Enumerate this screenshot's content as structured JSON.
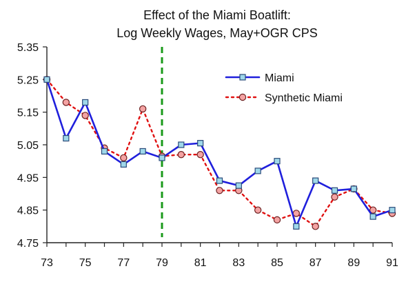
{
  "chart_data": {
    "type": "line",
    "title": "Effect of the Miami Boatlift:",
    "subtitle": "Log Weekly Wages, May+OGR CPS",
    "xlabel": "",
    "ylabel": "",
    "x": [
      73,
      74,
      75,
      76,
      77,
      78,
      79,
      80,
      81,
      82,
      83,
      84,
      85,
      86,
      87,
      88,
      89,
      90,
      91
    ],
    "xlim": [
      73,
      91
    ],
    "ylim": [
      4.75,
      5.35
    ],
    "x_tick_labels": [
      "73",
      "75",
      "77",
      "79",
      "81",
      "83",
      "85",
      "87",
      "89",
      "91"
    ],
    "y_tick_labels": [
      "5.35",
      "5.25",
      "5.15",
      "5.05",
      "4.95",
      "4.85",
      "4.75"
    ],
    "grid": false,
    "legend_position": "top-right",
    "reference_line": {
      "x": 79,
      "style": "dashed",
      "color": "#1a9a1a"
    },
    "series": [
      {
        "name": "Miami",
        "style": "solid",
        "marker": "square",
        "line_color": "#1f1fdc",
        "marker_fill": "#9fd8ea",
        "marker_stroke": "#2a4a7a",
        "values": [
          5.25,
          5.07,
          5.18,
          5.03,
          4.99,
          5.03,
          5.01,
          5.05,
          5.055,
          4.94,
          4.925,
          4.97,
          5.0,
          4.8,
          4.94,
          4.91,
          4.915,
          4.83,
          4.85
        ]
      },
      {
        "name": "Synthetic Miami",
        "style": "dotted",
        "marker": "circle",
        "line_color": "#e01010",
        "marker_fill": "#f4a3a3",
        "marker_stroke": "#6a1f1f",
        "values": [
          5.25,
          5.18,
          5.14,
          5.04,
          5.01,
          5.16,
          5.015,
          5.02,
          5.02,
          4.91,
          4.91,
          4.85,
          4.82,
          4.84,
          4.8,
          4.89,
          4.915,
          4.85,
          4.84
        ]
      }
    ]
  }
}
